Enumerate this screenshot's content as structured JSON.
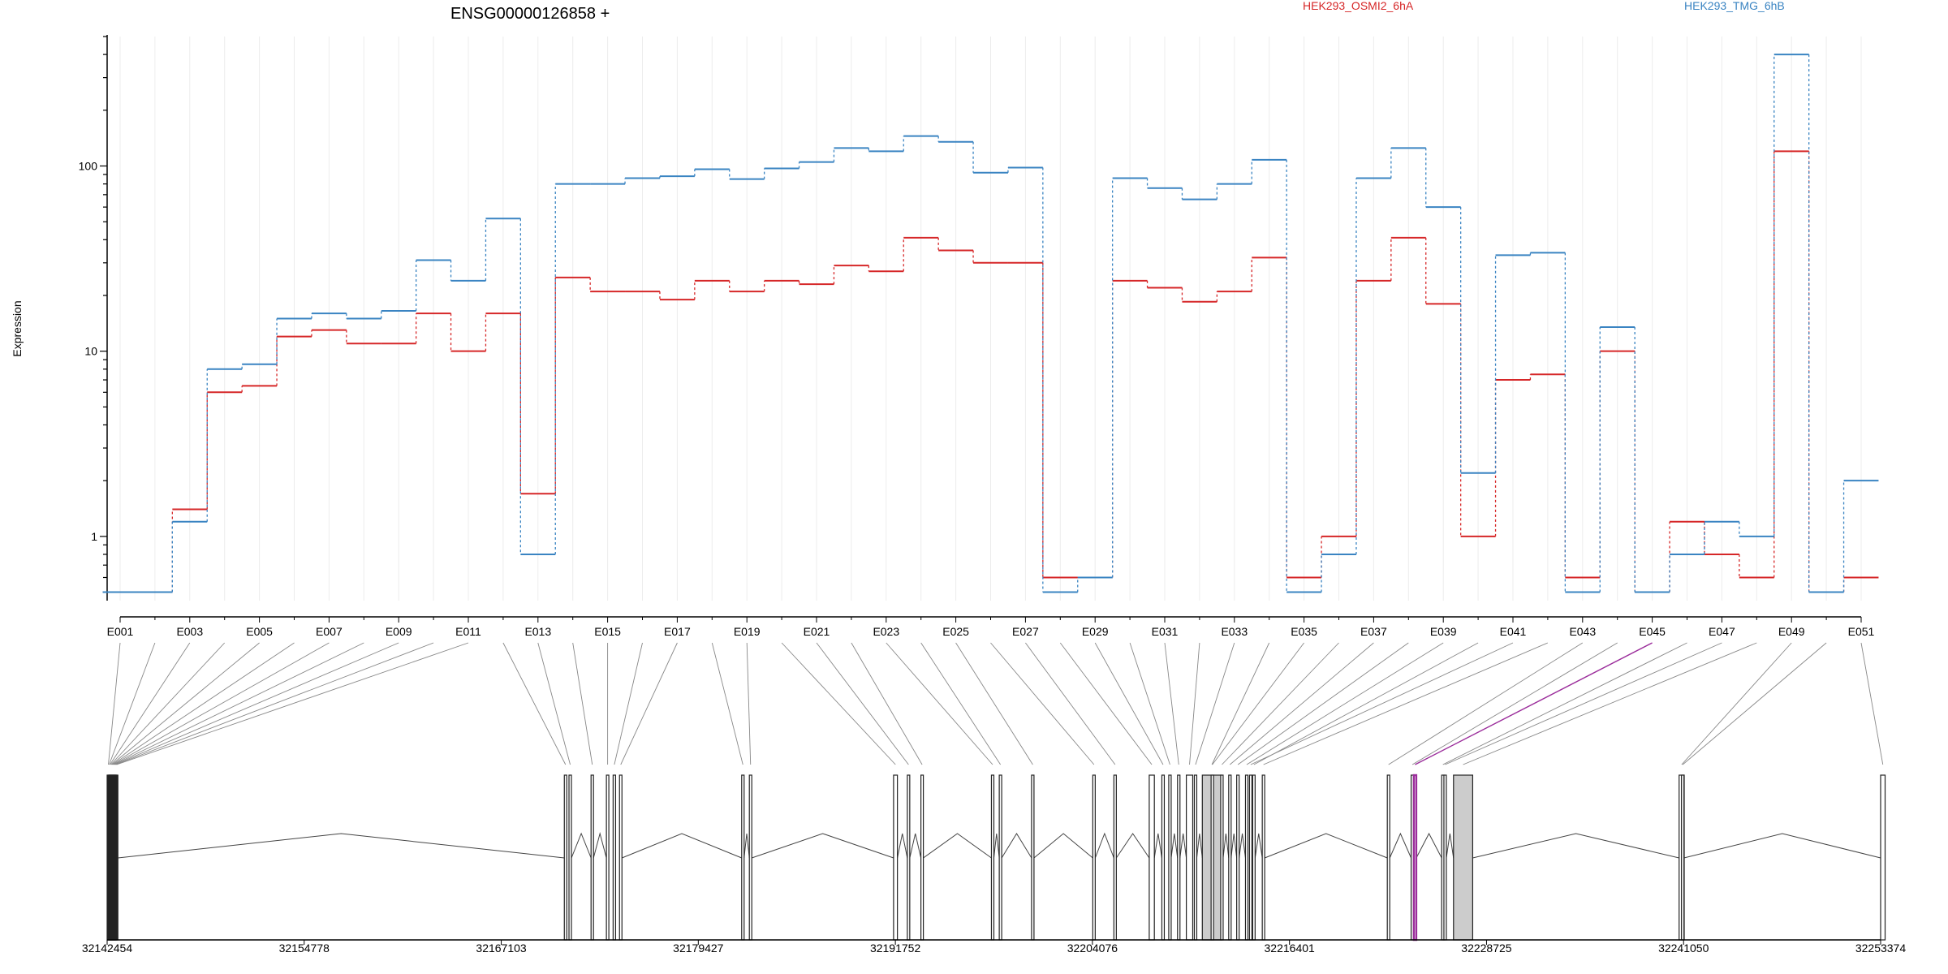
{
  "chart_data": {
    "type": "line",
    "title": "ENSG00000126858 +",
    "ylabel": "Expression",
    "yscale": "log",
    "ylim": [
      0.45,
      500
    ],
    "yticks": [
      1,
      10,
      100
    ],
    "ytick_labels": [
      "1",
      "10",
      "100"
    ],
    "colors": {
      "HEK293_OSMI2_6hA": "#d62728",
      "HEK293_TMG_6hB": "#3a84c2",
      "highlight": "#9b2d9b"
    },
    "exons": [
      "E001",
      "E002",
      "E003",
      "E004",
      "E005",
      "E006",
      "E007",
      "E008",
      "E009",
      "E010",
      "E011",
      "E012",
      "E013",
      "E014",
      "E015",
      "E016",
      "E017",
      "E018",
      "E019",
      "E020",
      "E021",
      "E022",
      "E023",
      "E024",
      "E025",
      "E026",
      "E027",
      "E028",
      "E029",
      "E030",
      "E031",
      "E032",
      "E033",
      "E034",
      "E035",
      "E036",
      "E037",
      "E038",
      "E039",
      "E040",
      "E041",
      "E042",
      "E043",
      "E044",
      "E045",
      "E046",
      "E047",
      "E048",
      "E049",
      "E050",
      "E051"
    ],
    "x_tick_labels": [
      "E001",
      "E003",
      "E005",
      "E007",
      "E009",
      "E011",
      "E013",
      "E015",
      "E017",
      "E019",
      "E021",
      "E023",
      "E025",
      "E027",
      "E029",
      "E031",
      "E033",
      "E035",
      "E037",
      "E039",
      "E041",
      "E043",
      "E045",
      "E047",
      "E049",
      "E051"
    ],
    "series": [
      {
        "name": "HEK293_OSMI2_6hA",
        "color": "#d62728",
        "values": [
          0.5,
          0.5,
          1.4,
          6,
          6.5,
          12,
          13,
          11,
          11,
          16,
          10,
          16,
          1.7,
          25,
          21,
          21,
          19,
          24,
          21,
          24,
          23,
          29,
          27,
          41,
          35,
          30,
          30,
          0.6,
          0.6,
          24,
          22,
          18.5,
          21,
          32,
          0.6,
          1,
          24,
          41,
          18,
          1,
          7,
          7.5,
          0.6,
          10,
          0.5,
          1.2,
          0.8,
          0.6,
          120,
          0.5,
          0.6
        ]
      },
      {
        "name": "HEK293_TMG_6hB",
        "color": "#3a84c2",
        "values": [
          0.5,
          0.5,
          1.2,
          8,
          8.5,
          15,
          16,
          15,
          16.5,
          31,
          24,
          52,
          0.8,
          80,
          80,
          86,
          88,
          96,
          85,
          97,
          105,
          125,
          120,
          145,
          135,
          92,
          98,
          0.5,
          0.6,
          86,
          76,
          66,
          80,
          108,
          0.5,
          0.8,
          86,
          125,
          60,
          2.2,
          33,
          34,
          0.5,
          13.5,
          0.5,
          0.8,
          1.2,
          1,
          400,
          0.5,
          2
        ]
      }
    ],
    "genomic_axis": {
      "tick_labels": [
        "32142454",
        "32154778",
        "32167103",
        "32179427",
        "32191752",
        "32204076",
        "32216401",
        "32228725",
        "32241050",
        "32253374"
      ],
      "range": [
        32142454,
        32253374
      ]
    },
    "highlight_exon": "E045",
    "legend": [
      "HEK293_OSMI2_6hA",
      "HEK293_TMG_6hB"
    ],
    "legend_position": "top"
  }
}
